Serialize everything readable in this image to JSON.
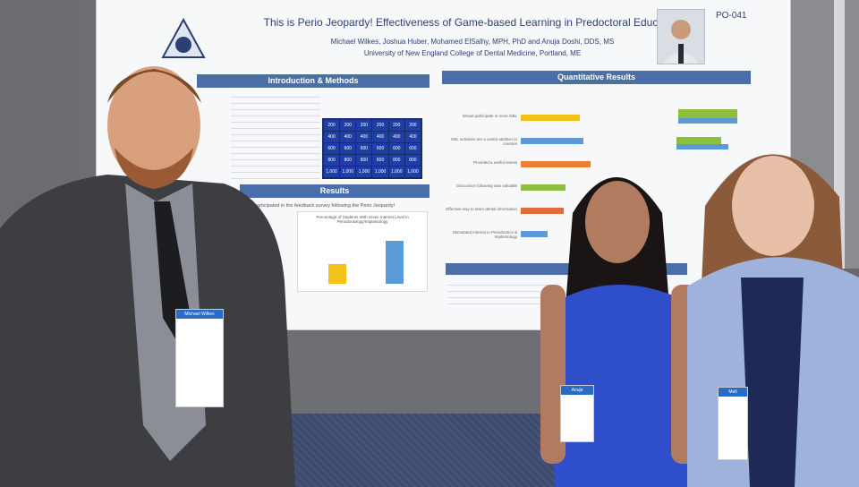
{
  "poster": {
    "title": "This is Perio Jeopardy! Effectiveness of Game-based Learning in Predoctoral Education",
    "authors": "Michael Wilkes, Joshua Huber, Mohamed ElSalhy, MPH, PhD and Anuja Doshi, DDS, MS",
    "affiliation": "University of New England College of Dental Medicine, Portland, ME",
    "poster_id": "PO-041",
    "sections": {
      "intro_methods": "Introduction & Methods",
      "results": "Results",
      "quantitative": "Quantitative Results"
    },
    "results_line": "participated in the feedback survey following the Perio Jeopardy!",
    "chart_title": "Percentage of Students With Given Interest Level in Periodontology/Implantology",
    "jeopardy_values": [
      "200",
      "200",
      "200",
      "200",
      "200",
      "200",
      "400",
      "400",
      "400",
      "400",
      "400",
      "400",
      "600",
      "600",
      "600",
      "600",
      "600",
      "600",
      "800",
      "800",
      "800",
      "800",
      "800",
      "800",
      "1,000",
      "1,000",
      "1,000",
      "1,000",
      "1,000",
      "1,000"
    ],
    "survey_items": [
      "Would participate in more GBL",
      "GBL activities are a useful addition to courses",
      "Provided a useful review",
      "Discussion following was valuable",
      "Effective way to learn dental information",
      "Stimulated interest in Periodontics & Implantology"
    ],
    "survey_colors": [
      "#f2c21b",
      "#5b9bd5",
      "#ed7d31",
      "#8cbf3f",
      "#e36c3a",
      "#5b9bd5"
    ]
  },
  "badges": {
    "left": {
      "name": "Michael Wilkes"
    },
    "middle": {
      "name": "Anuja"
    },
    "right": {
      "name": "Meli"
    }
  }
}
